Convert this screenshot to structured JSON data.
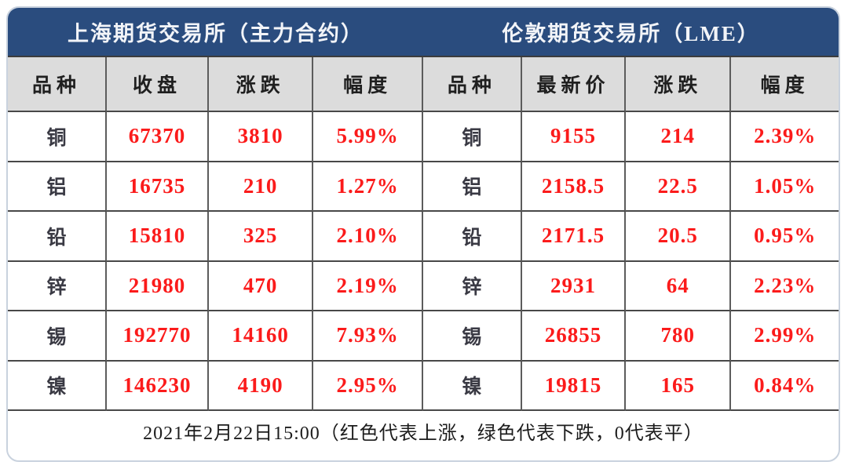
{
  "card": {
    "left_title": "上海期货交易所（主力合约）",
    "right_title": "伦敦期货交易所（LME）",
    "footer_note": "2021年2月22日15:00（红色代表上涨，绿色代表下跌，0代表平）"
  },
  "table": {
    "left_headers": [
      "品种",
      "收盘",
      "涨跌",
      "幅度"
    ],
    "right_headers": [
      "品种",
      "最新价",
      "涨跌",
      "幅度"
    ],
    "rows": [
      [
        "铜",
        "67370",
        "3810",
        "5.99%",
        "铜",
        "9155",
        "214",
        "2.39%"
      ],
      [
        "铝",
        "16735",
        "210",
        "1.27%",
        "铝",
        "2158.5",
        "22.5",
        "1.05%"
      ],
      [
        "铅",
        "15810",
        "325",
        "2.10%",
        "铅",
        "2171.5",
        "20.5",
        "0.95%"
      ],
      [
        "锌",
        "21980",
        "470",
        "2.19%",
        "锌",
        "2931",
        "64",
        "2.23%"
      ],
      [
        "锡",
        "192770",
        "14160",
        "7.93%",
        "锡",
        "26855",
        "780",
        "2.99%"
      ],
      [
        "镍",
        "146230",
        "4190",
        "2.95%",
        "镍",
        "19815",
        "165",
        "0.84%"
      ]
    ]
  },
  "colors": {
    "band_blue": "#2a4c7e",
    "header_gray": "#dcdcdc",
    "value_red": "#fb1b1b",
    "name_dark": "#3a3a44",
    "border_dark": "#484848",
    "card_border": "#c9d2de"
  }
}
